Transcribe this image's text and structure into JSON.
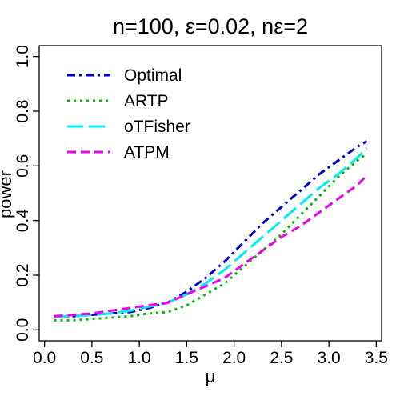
{
  "chart_data": {
    "type": "line",
    "title": "n=100, ε=0.02, nε=2",
    "xlabel": "μ",
    "ylabel": "power",
    "xlim": [
      0,
      3.5
    ],
    "ylim": [
      0,
      1
    ],
    "xticks": [
      0.0,
      0.5,
      1.0,
      1.5,
      2.0,
      2.5,
      3.0,
      3.5
    ],
    "xtick_labels": [
      "0.0",
      "0.5",
      "1.0",
      "1.5",
      "2.0",
      "2.5",
      "3.0",
      "3.5"
    ],
    "yticks": [
      0.0,
      0.2,
      0.4,
      0.6,
      0.8,
      1.0
    ],
    "ytick_labels": [
      "0.0",
      "0.2",
      "0.4",
      "0.6",
      "0.8",
      "1.0"
    ],
    "grid": false,
    "legend_position": "top-left",
    "x": [
      0.1,
      0.3,
      0.5,
      0.7,
      0.9,
      1.1,
      1.3,
      1.5,
      1.7,
      1.9,
      2.1,
      2.3,
      2.5,
      2.7,
      2.9,
      3.1,
      3.3,
      3.4
    ],
    "series": [
      {
        "name": "Optimal",
        "color": "#0000CD",
        "dash": "dotdash",
        "values": [
          0.05,
          0.05,
          0.055,
          0.06,
          0.065,
          0.08,
          0.1,
          0.14,
          0.19,
          0.25,
          0.32,
          0.39,
          0.45,
          0.51,
          0.57,
          0.62,
          0.67,
          0.69
        ]
      },
      {
        "name": "ARTP",
        "color": "#00BB00",
        "dash": "dotted",
        "values": [
          0.035,
          0.035,
          0.04,
          0.045,
          0.05,
          0.06,
          0.065,
          0.09,
          0.13,
          0.17,
          0.23,
          0.29,
          0.35,
          0.42,
          0.49,
          0.56,
          0.62,
          0.645
        ]
      },
      {
        "name": "oTFisher",
        "color": "#00EEEE",
        "dash": "longdash",
        "values": [
          0.05,
          0.05,
          0.055,
          0.06,
          0.07,
          0.085,
          0.1,
          0.13,
          0.17,
          0.22,
          0.28,
          0.34,
          0.4,
          0.46,
          0.52,
          0.57,
          0.63,
          0.665
        ]
      },
      {
        "name": "ATPM",
        "color": "#EE00EE",
        "dash": "dashed",
        "values": [
          0.05,
          0.055,
          0.06,
          0.07,
          0.08,
          0.09,
          0.1,
          0.13,
          0.16,
          0.19,
          0.24,
          0.29,
          0.34,
          0.38,
          0.43,
          0.48,
          0.53,
          0.565
        ]
      }
    ]
  }
}
